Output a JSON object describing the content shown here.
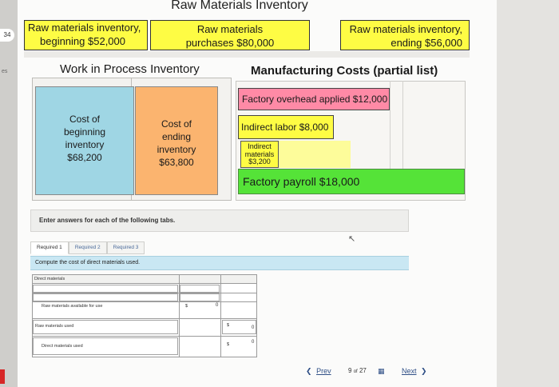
{
  "side": {
    "tab_number": "34",
    "fragment": "es"
  },
  "diagram": {
    "title": "Raw Materials Inventory",
    "rm_beginning": {
      "line1": "Raw materials inventory,",
      "line2": "beginning $52,000"
    },
    "rm_purchases": {
      "line1": "Raw materials",
      "line2": "purchases $80,000"
    },
    "rm_ending": {
      "line1": "Raw materials inventory,",
      "line2": "ending $56,000"
    },
    "wip_title": "Work in Process Inventory",
    "mfg_title": "Manufacturing Costs (partial list)",
    "wip_beginning": [
      "Cost of",
      "beginning",
      "inventory",
      "$68,200"
    ],
    "wip_ending": [
      "Cost of",
      "ending",
      "inventory",
      "$63,800"
    ],
    "overhead": "Factory overhead applied $12,000",
    "indirect_labor": "Indirect labor $8,000",
    "indirect_materials": [
      "Indirect",
      "materials",
      "$3,200"
    ],
    "factory_payroll": "Factory payroll $18,000",
    "colors": {
      "yellow": "#fefc44",
      "blue": "#9fd6e4",
      "orange": "#fbb46f",
      "pink": "#ff8aa6",
      "green": "#55e338"
    }
  },
  "question": {
    "instruction": "Enter answers for each of the following tabs.",
    "tabs": [
      "Required 1",
      "Required 2",
      "Required 3"
    ],
    "active_tab": "Required 1",
    "prompt": "Compute the cost of direct materials used.",
    "table": {
      "header": "Direct materials",
      "rows": [
        {
          "label": "Raw materials available for use",
          "col1_symbol": "$",
          "col1_value": "0",
          "col2_symbol": "",
          "col2_value": ""
        },
        {
          "label": "Raw materials used",
          "col1_symbol": "",
          "col1_value": "",
          "col2_symbol": "$",
          "col2_value": "0"
        },
        {
          "label": "Direct materials used",
          "col1_symbol": "",
          "col1_value": "",
          "col2_symbol": "$",
          "col2_value": "0"
        }
      ]
    }
  },
  "nav": {
    "prev_label": "Prev",
    "page_current": "9",
    "page_of": "of",
    "page_total": "27",
    "next_label": "Next",
    "icons": {
      "prev": "chevron-left-icon",
      "next": "chevron-right-icon",
      "grid": "grid-icon",
      "cursor": "cursor-icon"
    }
  }
}
